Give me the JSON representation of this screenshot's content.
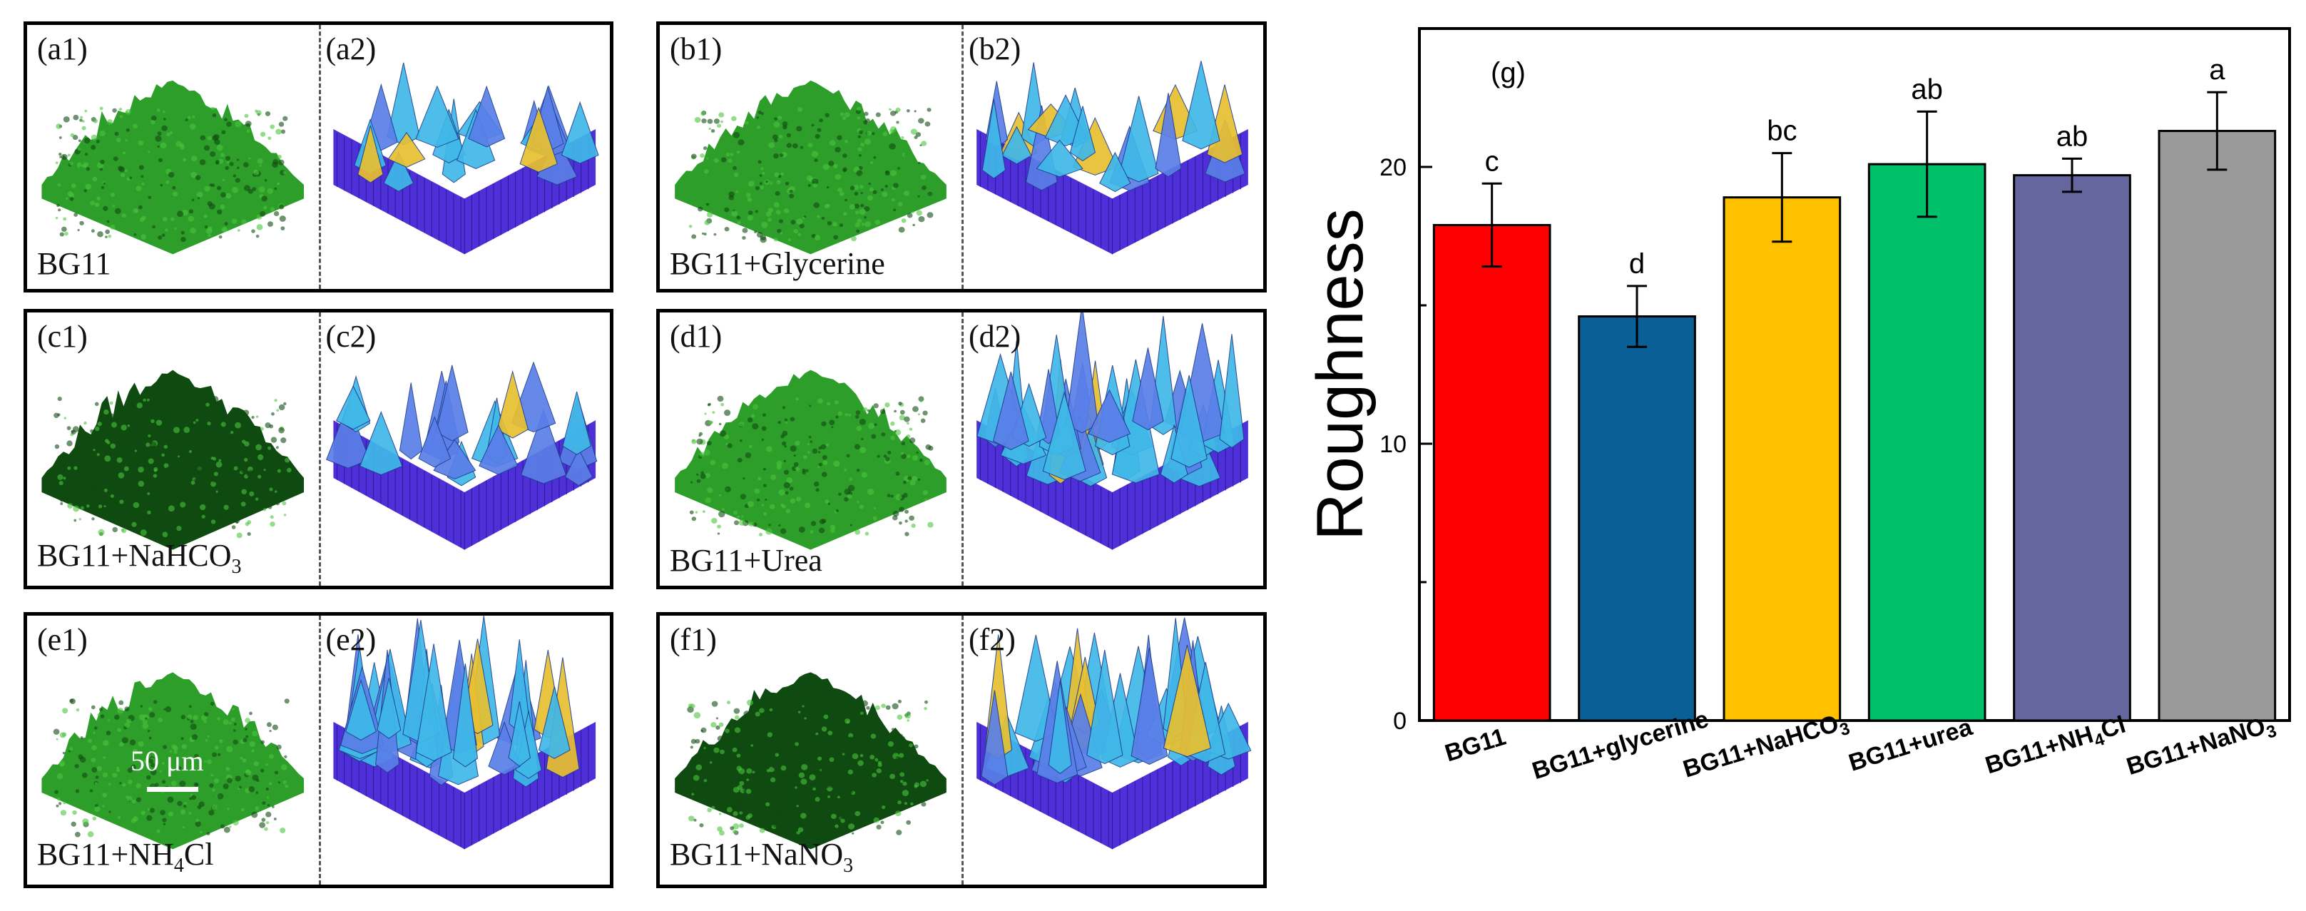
{
  "panels": [
    {
      "left_label": "(a1)",
      "right_label": "(a2)",
      "caption": "BG11"
    },
    {
      "left_label": "(b1)",
      "right_label": "(b2)",
      "caption": "BG11+Glycerine"
    },
    {
      "left_label": "(c1)",
      "right_label": "(c2)",
      "caption_main": "BG11+NaHCO",
      "caption_sub": "3"
    },
    {
      "left_label": "(d1)",
      "right_label": "(d2)",
      "caption": "BG11+Urea"
    },
    {
      "left_label": "(e1)",
      "right_label": "(e2)",
      "caption_main": "BG11+NH",
      "caption_sub": "4",
      "caption_tail": "Cl",
      "scale_bar": "50 μm"
    },
    {
      "left_label": "(f1)",
      "right_label": "(f2)",
      "caption_main": "BG11+NaNO",
      "caption_sub": "3"
    }
  ],
  "colors": {
    "surface_green": "#2e9e2a",
    "surface_dark": "#0f4a10",
    "mesh_blue": "#4f2fd8",
    "mesh_cyan": "#3fb8e8",
    "mesh_yellow": "#e8c030"
  },
  "chart_data": {
    "type": "bar",
    "panel_label": "(g)",
    "ylabel": "Roughness",
    "xlabel": "",
    "ylim": [
      0,
      25
    ],
    "yticks": [
      0,
      10,
      20
    ],
    "categories": [
      "BG11",
      "BG11+glycerine",
      "BG11+NaHCO3",
      "BG11+urea",
      "BG11+NH4Cl",
      "BG11+NaNO3"
    ],
    "category_display": [
      {
        "main": "BG11",
        "sub": "",
        "tail": ""
      },
      {
        "main": "BG11+glycerine",
        "sub": "",
        "tail": ""
      },
      {
        "main": "BG11+NaHCO",
        "sub": "3",
        "tail": ""
      },
      {
        "main": "BG11+urea",
        "sub": "",
        "tail": ""
      },
      {
        "main": "BG11+NH",
        "sub": "4",
        "tail": "Cl"
      },
      {
        "main": "BG11+NaNO",
        "sub": "3",
        "tail": ""
      }
    ],
    "values": [
      17.9,
      14.6,
      18.9,
      20.1,
      19.7,
      21.3
    ],
    "errors": [
      1.5,
      1.1,
      1.6,
      1.9,
      0.6,
      1.4
    ],
    "significance": [
      "c",
      "d",
      "bc",
      "ab",
      "ab",
      "a"
    ],
    "bar_colors": [
      "#ff0000",
      "#0a5f96",
      "#ffc000",
      "#00c06a",
      "#66669e",
      "#9a9a9a"
    ]
  }
}
